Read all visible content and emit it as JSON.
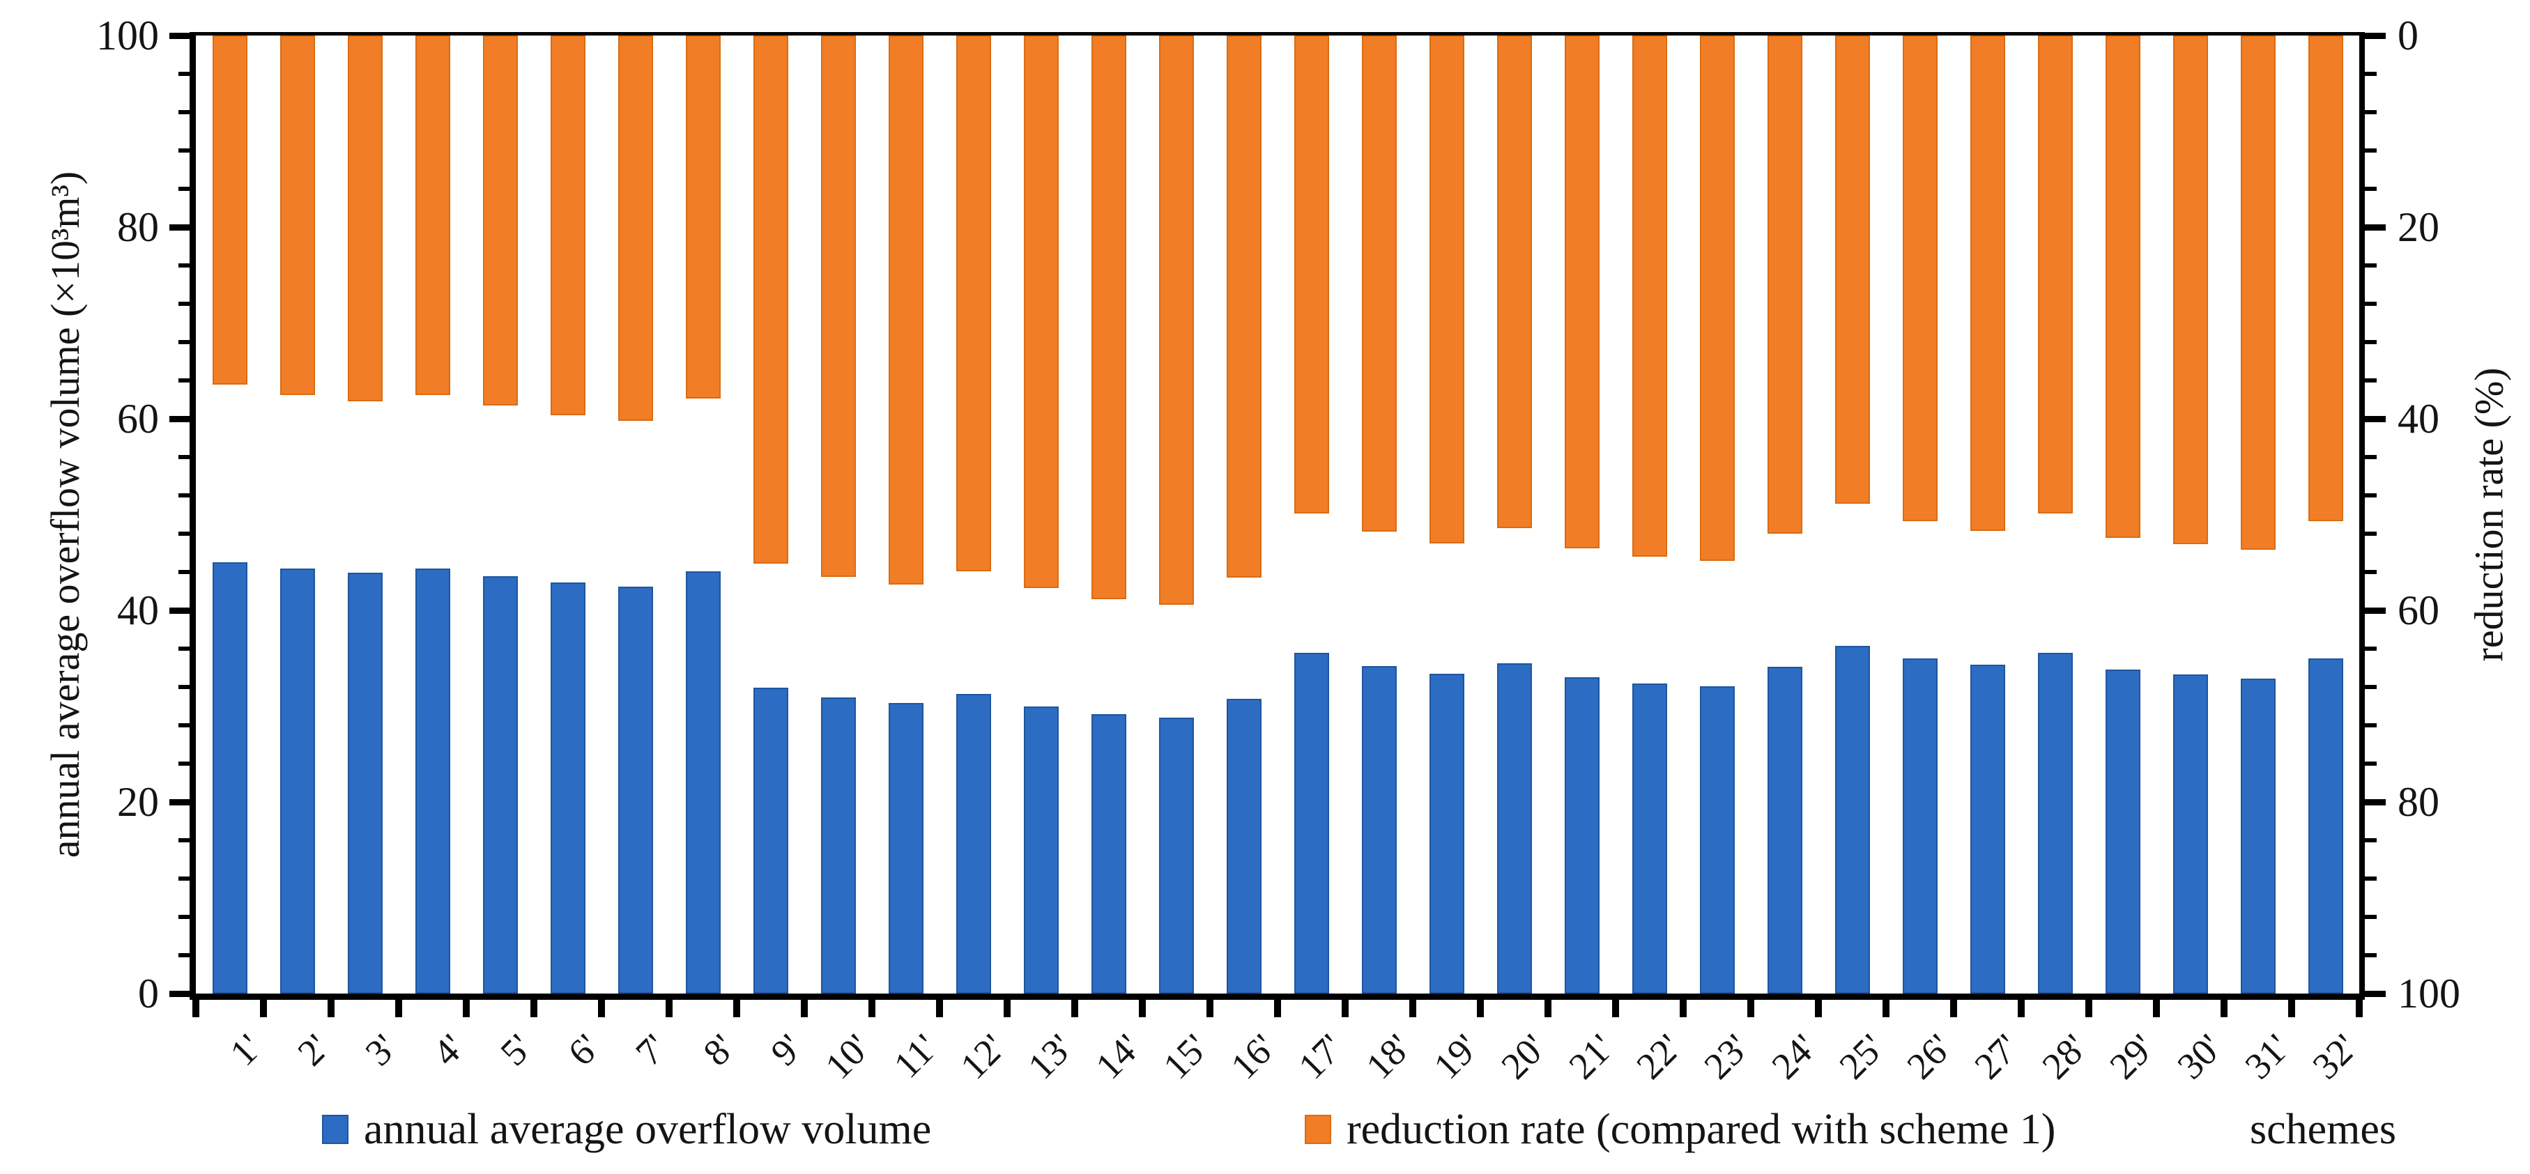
{
  "axes": {
    "left": {
      "title": "annual average overflow volume (×10³m³)",
      "tick_values": [
        0,
        20,
        40,
        60,
        80,
        100
      ],
      "minor_unit": 4,
      "range": [
        0,
        100
      ]
    },
    "right": {
      "title": "reduction rate (%)",
      "tick_values": [
        0,
        20,
        40,
        60,
        80,
        100
      ],
      "minor_unit": 4,
      "range": [
        0,
        100
      ],
      "inverted": true
    },
    "bottom": {
      "title": "schemes"
    }
  },
  "legend": {
    "items": [
      {
        "label": "annual average overflow volume",
        "series": "volume"
      },
      {
        "label": "reduction rate (compared with scheme 1)",
        "series": "reduction"
      }
    ]
  },
  "colors": {
    "volume": "#2d6cc3",
    "volume_edge": "#1e569e",
    "reduction": "#f17e26",
    "reduction_edge": "#d96c12",
    "axis": "#000000",
    "text": "#141414"
  },
  "chart_data": {
    "type": "bar",
    "title": "",
    "xlabel": "schemes",
    "ylabel_left": "annual average overflow volume (×10³m³)",
    "ylabel_right": "reduction rate (%)",
    "left_ylim": [
      0,
      100
    ],
    "right_ylim": [
      0,
      100
    ],
    "right_axis_inverted": true,
    "grid": false,
    "legend_position": "bottom",
    "categories": [
      "1'",
      "2'",
      "3'",
      "4'",
      "5'",
      "6'",
      "7'",
      "8'",
      "9'",
      "10'",
      "11'",
      "12'",
      "13'",
      "14'",
      "15'",
      "16'",
      "17'",
      "18'",
      "19'",
      "20'",
      "21'",
      "22'",
      "23'",
      "24'",
      "25'",
      "26'",
      "27'",
      "28'",
      "29'",
      "30'",
      "31'",
      "32'"
    ],
    "series": [
      {
        "name": "annual average overflow volume",
        "axis": "left",
        "values": [
          45.0,
          44.4,
          43.9,
          44.4,
          43.6,
          42.9,
          42.5,
          44.1,
          31.9,
          30.9,
          30.3,
          31.3,
          30.0,
          29.2,
          28.8,
          30.8,
          35.6,
          34.2,
          33.4,
          34.5,
          33.0,
          32.4,
          32.1,
          34.1,
          36.3,
          35.0,
          34.3,
          35.6,
          33.8,
          33.3,
          32.9,
          35.0
        ]
      },
      {
        "name": "reduction rate (compared with scheme 1)",
        "axis": "right",
        "values": [
          36.4,
          37.5,
          38.2,
          37.5,
          38.6,
          39.6,
          40.2,
          37.9,
          55.1,
          56.5,
          57.3,
          55.9,
          57.7,
          58.8,
          59.4,
          56.6,
          49.9,
          51.8,
          53.0,
          51.4,
          53.5,
          54.4,
          54.8,
          52.0,
          48.9,
          50.7,
          51.7,
          49.9,
          52.4,
          53.1,
          53.7,
          50.7
        ]
      }
    ]
  }
}
